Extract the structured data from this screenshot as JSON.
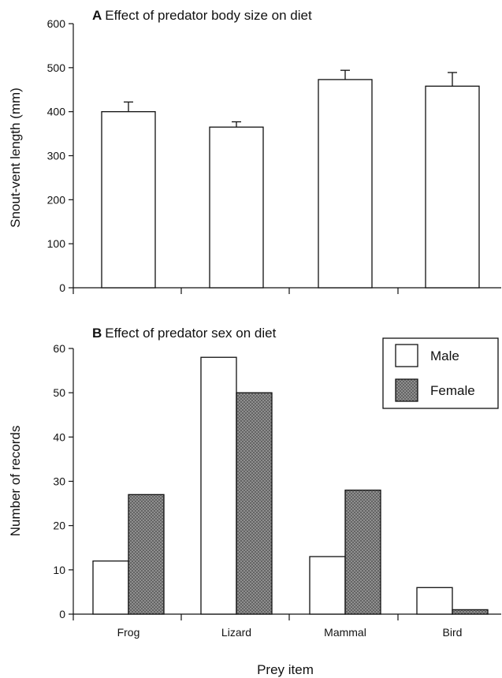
{
  "chart_data": [
    {
      "type": "bar",
      "panel_letter": "A",
      "title": "Effect of predator body size on diet",
      "xlabel": "",
      "ylabel": "Snout-vent length (mm)",
      "ylim": [
        0,
        600
      ],
      "yticks": [
        0,
        100,
        200,
        300,
        400,
        500,
        600
      ],
      "categories": [
        "Frog",
        "Lizard",
        "Mammal",
        "Bird"
      ],
      "values": [
        400,
        365,
        473,
        458
      ],
      "error_upper": [
        422,
        377,
        494,
        489
      ],
      "bar_color": "#ffffff"
    },
    {
      "type": "bar",
      "panel_letter": "B",
      "title": "Effect of predator sex on diet",
      "xlabel": "Prey item",
      "ylabel": "Number of records",
      "ylim": [
        0,
        60
      ],
      "yticks": [
        0,
        10,
        20,
        30,
        40,
        50,
        60
      ],
      "categories": [
        "Frog",
        "Lizard",
        "Mammal",
        "Bird"
      ],
      "series": [
        {
          "name": "Male",
          "values": [
            12,
            58,
            13,
            6
          ],
          "color": "#ffffff"
        },
        {
          "name": "Female",
          "values": [
            27,
            50,
            28,
            1
          ],
          "color": "#8c8c8c"
        }
      ],
      "legend": "top-right"
    }
  ]
}
